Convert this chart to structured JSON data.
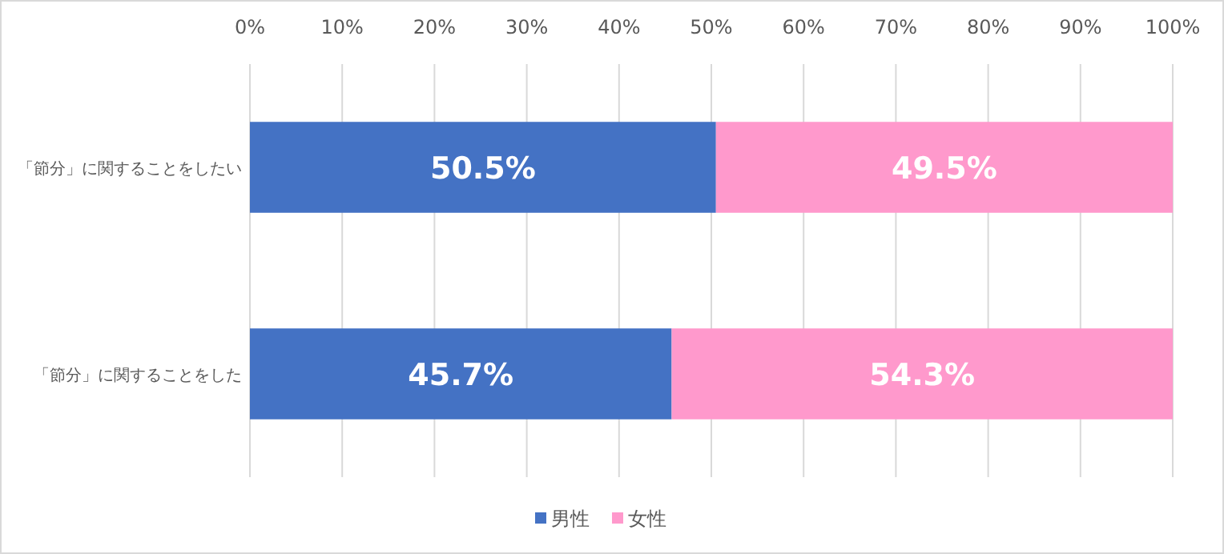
{
  "chart_data": {
    "type": "bar",
    "orientation": "horizontal",
    "stacked": true,
    "categories": [
      "「節分」に関することをしたい",
      "「節分」に関することをした"
    ],
    "series": [
      {
        "name": "男性",
        "color": "#4472c4",
        "values": [
          50.5,
          45.7
        ],
        "value_labels": [
          "50.5%",
          "45.7%"
        ]
      },
      {
        "name": "女性",
        "color": "#ff99cc",
        "values": [
          49.5,
          54.3
        ],
        "value_labels": [
          "49.5%",
          "54.3%"
        ]
      }
    ],
    "xlim": [
      0,
      100
    ],
    "xticks": [
      {
        "value": 0,
        "label": "0%"
      },
      {
        "value": 10,
        "label": "10%"
      },
      {
        "value": 20,
        "label": "20%"
      },
      {
        "value": 30,
        "label": "30%"
      },
      {
        "value": 40,
        "label": "40%"
      },
      {
        "value": 50,
        "label": "50%"
      },
      {
        "value": 60,
        "label": "60%"
      },
      {
        "value": 70,
        "label": "70%"
      },
      {
        "value": 80,
        "label": "80%"
      },
      {
        "value": 90,
        "label": "90%"
      },
      {
        "value": 100,
        "label": "100%"
      }
    ],
    "grid": "x",
    "legend": "bottom"
  }
}
